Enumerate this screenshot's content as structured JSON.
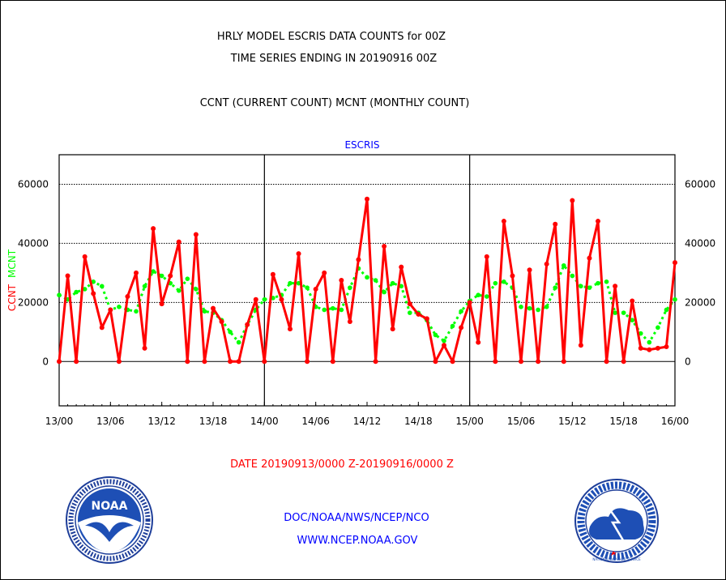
{
  "header": {
    "title_line1": "HRLY MODEL ESCRIS DATA COUNTS for 00Z",
    "title_line2": "TIME SERIES ENDING IN 20190916 00Z",
    "subtitle": "CCNT (CURRENT COUNT) MCNT (MONTHLY COUNT)"
  },
  "footer": {
    "date_range": "DATE 20190913/0000 Z-20190916/0000 Z",
    "org_line": "DOC/NOAA/NWS/NCEP/NCO",
    "website": "WWW.NCEP.NOAA.GOV"
  },
  "logos": {
    "left": "NOAA",
    "right": "NATIONAL WEATHER SERVICE"
  },
  "chart_data": {
    "type": "line",
    "title": "ESCRIS",
    "ylabel_series": [
      "CCNT",
      "MCNT"
    ],
    "ylim": [
      -15000,
      70000
    ],
    "yticks": [
      0,
      20000,
      40000,
      60000
    ],
    "ytick_labels": [
      "0",
      "20000",
      "40000",
      "60000"
    ],
    "xlim": [
      0,
      72
    ],
    "xticks": [
      0,
      6,
      12,
      18,
      24,
      30,
      36,
      42,
      48,
      54,
      60,
      66,
      72
    ],
    "xtick_labels": [
      "13/00",
      "13/06",
      "13/12",
      "13/18",
      "14/00",
      "14/06",
      "14/12",
      "14/18",
      "15/00",
      "15/06",
      "15/12",
      "15/18",
      "16/00"
    ],
    "day_dividers": [
      24,
      48
    ],
    "grid": "horizontal",
    "colors": {
      "CCNT": "#ff0000",
      "MCNT": "#00ff00",
      "title": "#0000ff",
      "date": "#ff0000",
      "org": "#0000ff"
    },
    "series": [
      {
        "name": "CCNT",
        "style": "solid",
        "x": [
          0,
          1,
          2,
          3,
          4,
          5,
          6,
          7,
          8,
          9,
          10,
          11,
          12,
          13,
          14,
          15,
          16,
          17,
          18,
          19,
          20,
          21,
          22,
          23,
          24,
          25,
          26,
          27,
          28,
          29,
          30,
          31,
          32,
          33,
          34,
          35,
          36,
          37,
          38,
          39,
          40,
          41,
          42,
          43,
          44,
          45,
          46,
          47,
          48,
          49,
          50,
          51,
          52,
          53,
          54,
          55,
          56,
          57,
          58,
          59,
          60,
          61,
          62,
          63,
          64,
          65,
          66,
          67,
          68,
          69,
          70,
          71,
          72
        ],
        "values": [
          0,
          29000,
          0,
          35500,
          23000,
          11500,
          17500,
          0,
          22000,
          30000,
          4500,
          45000,
          19500,
          29000,
          40500,
          0,
          43000,
          0,
          18000,
          13500,
          0,
          0,
          12500,
          21000,
          0,
          29500,
          21000,
          11000,
          36500,
          0,
          24500,
          30000,
          0,
          27500,
          13500,
          34500,
          55000,
          0,
          39000,
          11000,
          32000,
          19500,
          16000,
          14500,
          0,
          5500,
          0,
          11500,
          20000,
          6500,
          35500,
          0,
          47500,
          29000,
          0,
          31000,
          0,
          33000,
          46500,
          0,
          54500,
          5500,
          35000,
          47500,
          0,
          25500,
          0,
          20500,
          4500,
          4000,
          4500,
          5000,
          33500
        ]
      },
      {
        "name": "MCNT",
        "style": "dotted",
        "x": [
          0,
          1,
          2,
          3,
          4,
          5,
          6,
          7,
          8,
          9,
          10,
          11,
          12,
          13,
          14,
          15,
          16,
          17,
          18,
          19,
          20,
          21,
          22,
          23,
          24,
          25,
          26,
          27,
          28,
          29,
          30,
          31,
          32,
          33,
          34,
          35,
          36,
          37,
          38,
          39,
          40,
          41,
          42,
          43,
          44,
          45,
          46,
          47,
          48,
          49,
          50,
          51,
          52,
          53,
          54,
          55,
          56,
          57,
          58,
          59,
          60,
          61,
          62,
          63,
          64,
          65,
          66,
          67,
          68,
          69,
          70,
          71,
          72
        ],
        "values": [
          22500,
          21000,
          23500,
          24500,
          27000,
          25500,
          17500,
          18500,
          17500,
          17000,
          25500,
          30500,
          29000,
          26500,
          24000,
          28000,
          24500,
          17000,
          16500,
          14000,
          10000,
          6500,
          12500,
          17500,
          21000,
          21500,
          22500,
          26500,
          26500,
          25000,
          18500,
          17500,
          18000,
          17500,
          25000,
          31500,
          28500,
          27500,
          23500,
          26500,
          25500,
          16500,
          16500,
          14000,
          9000,
          7000,
          12000,
          17000,
          20500,
          22500,
          22000,
          26500,
          27000,
          25000,
          18500,
          18000,
          17500,
          18500,
          25000,
          32500,
          29000,
          25500,
          25000,
          26500,
          27000,
          16500,
          16500,
          14000,
          9500,
          6500,
          11500,
          17500,
          21000
        ]
      }
    ]
  }
}
